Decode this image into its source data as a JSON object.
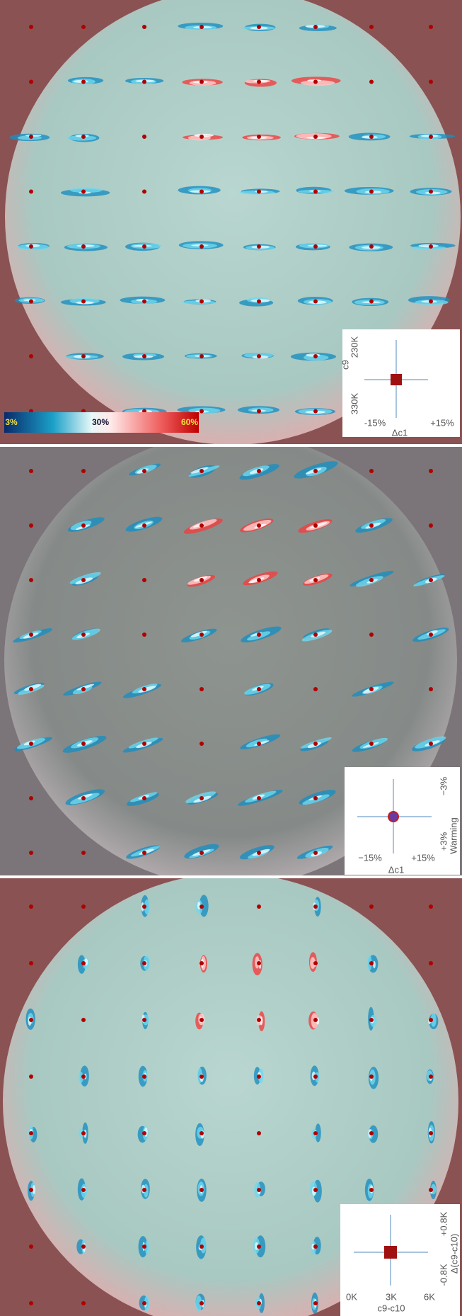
{
  "panels": [
    {
      "colorbar": {
        "labels": [
          "3%",
          "30%",
          "60%"
        ]
      },
      "legend": {
        "y_label": "c9",
        "y_top": "230K",
        "y_bottom": "330K",
        "x_left": "-15%",
        "x_right": "+15%",
        "x_label": "Δc1"
      }
    },
    {
      "legend": {
        "y_top": "−3%",
        "y_bottom": "+3%",
        "y_label": "Warming",
        "x_left": "−15%",
        "x_right": "+15%",
        "x_label": "Δc1"
      }
    },
    {
      "legend": {
        "y_top": "+0.8K",
        "y_bottom": "-0.8K",
        "y_label": "Δ(c9-c10)",
        "x_left": "0K",
        "x_mid": "3K",
        "x_right": "6K",
        "x_label": "c9-c10"
      }
    }
  ]
}
